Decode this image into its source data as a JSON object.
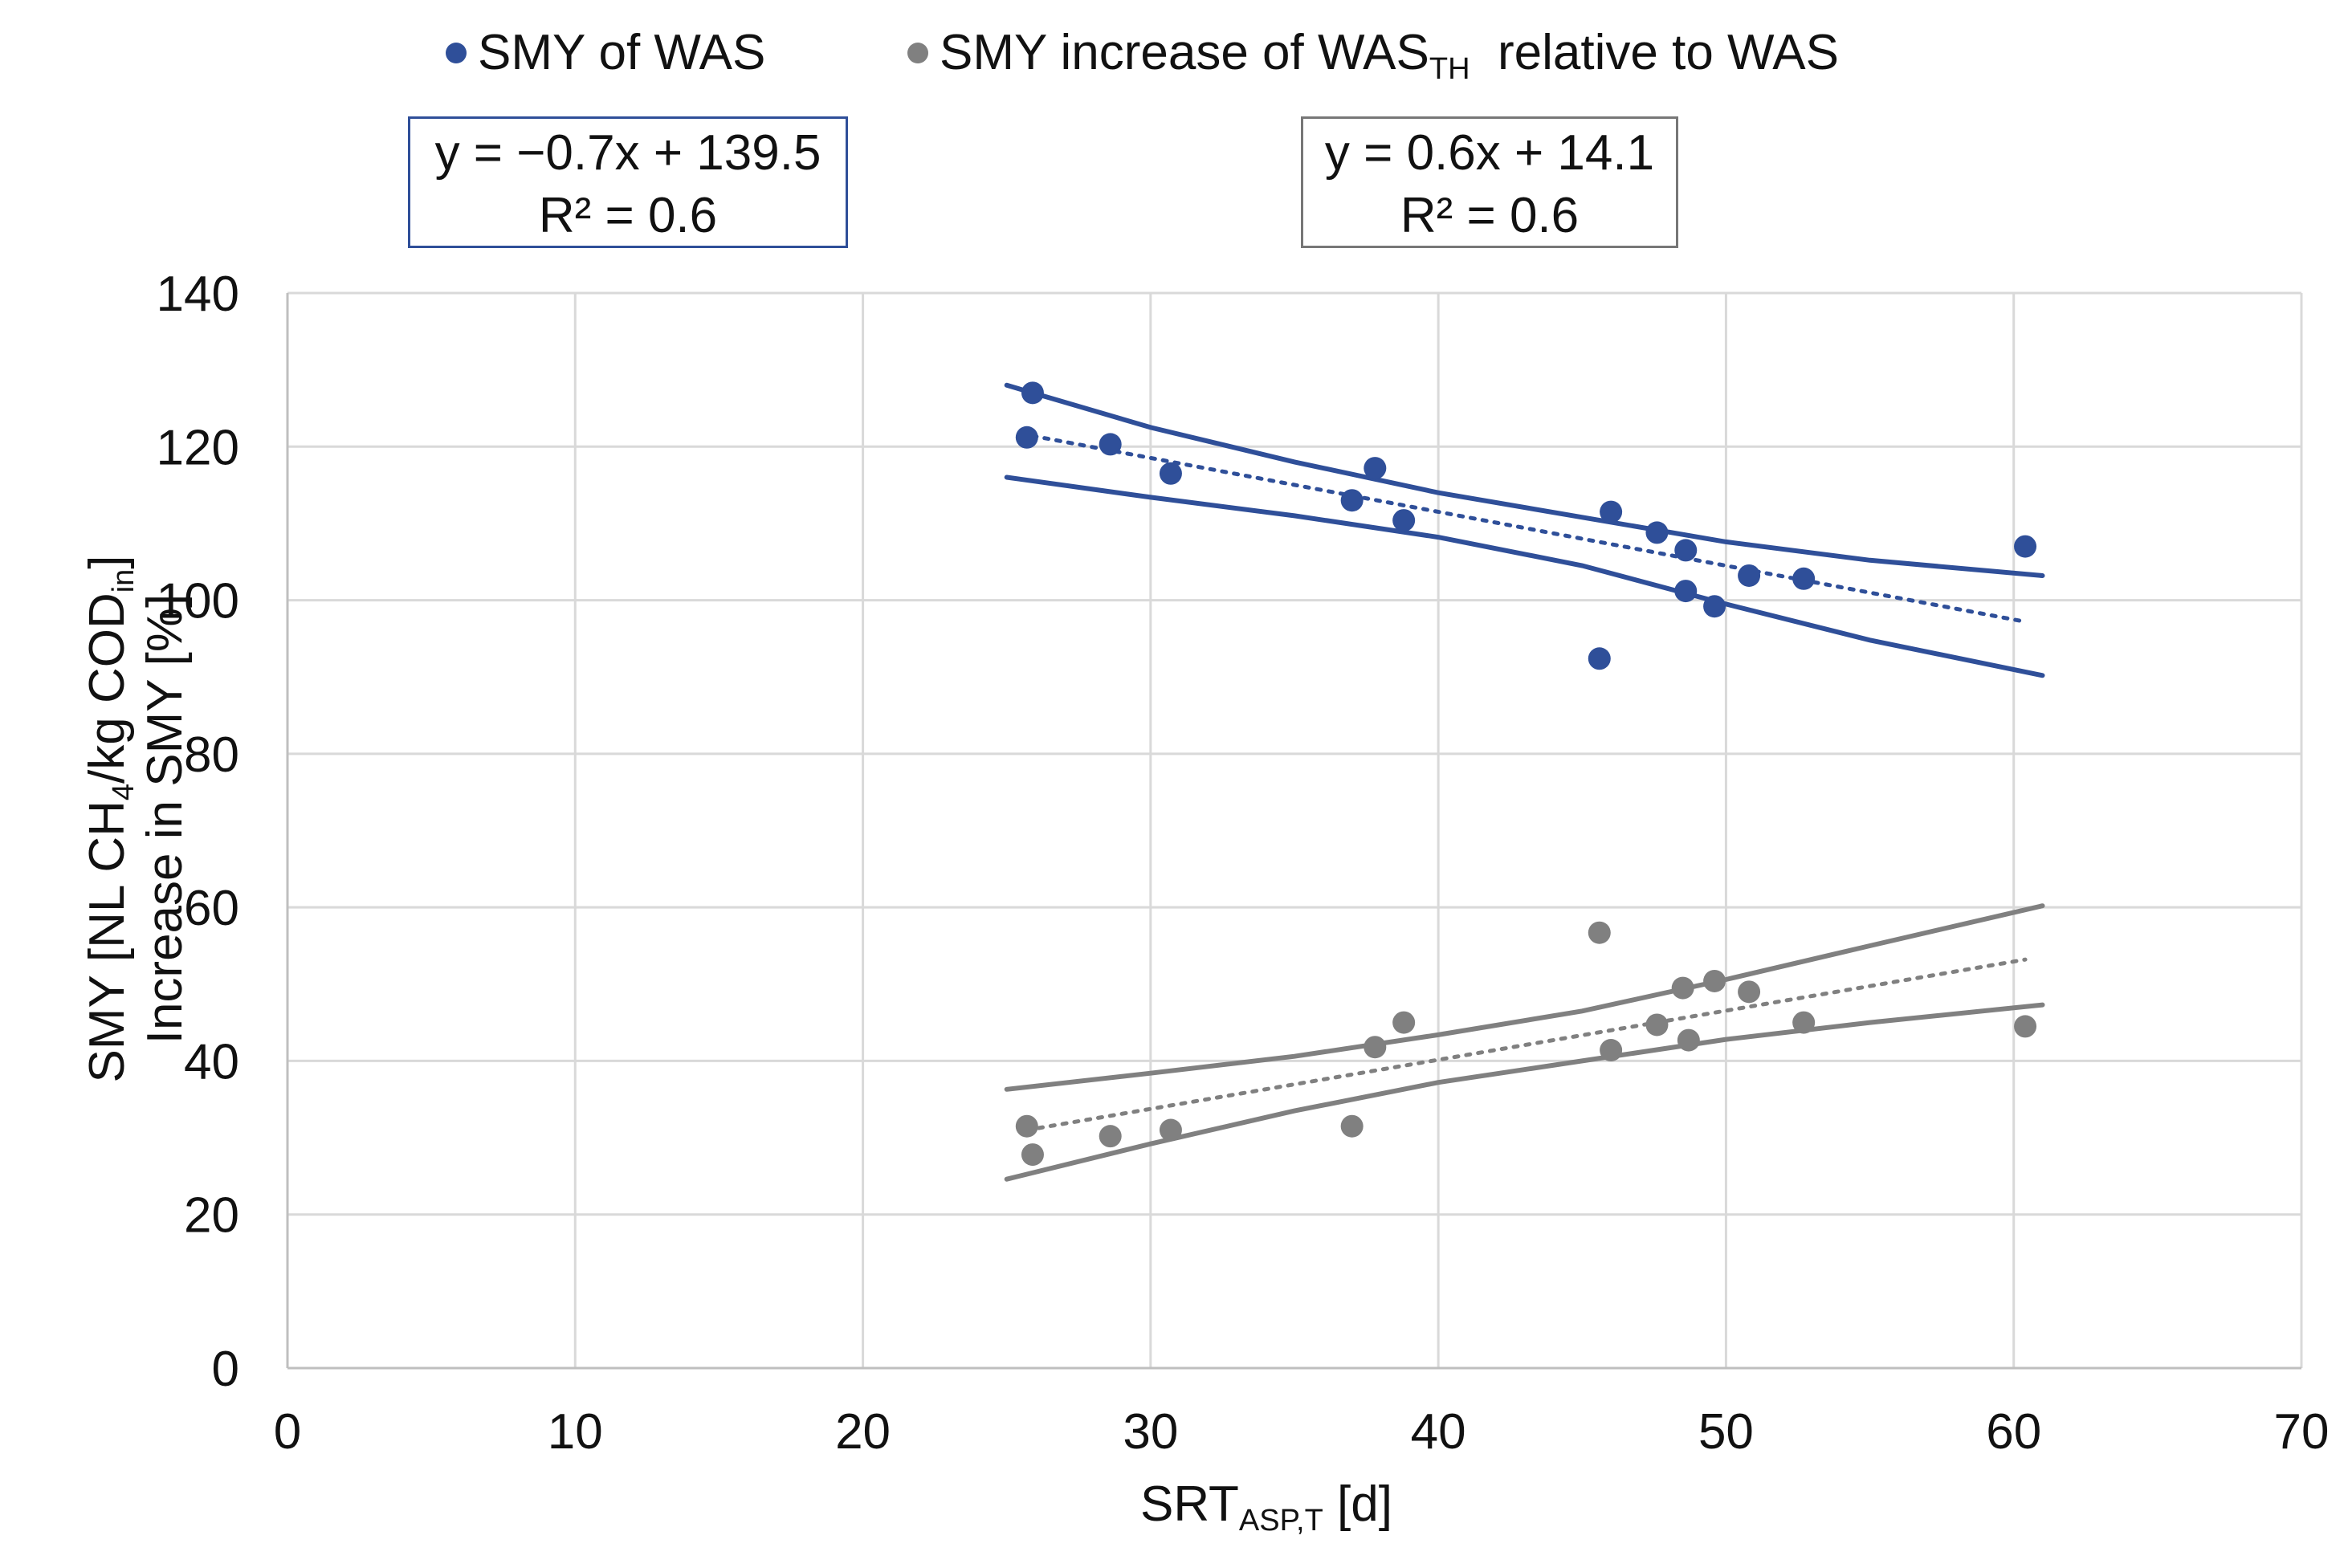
{
  "chart_data": {
    "type": "scatter",
    "x_axis": {
      "label": "SRT",
      "label_sub": "ASP,T",
      "label_suffix": " [d]",
      "range": [
        0,
        70
      ],
      "ticks": [
        0,
        10,
        20,
        30,
        40,
        50,
        60,
        70
      ]
    },
    "y_axis": {
      "label_line1_prefix": "SMY [NL CH",
      "label_line1_sub1": "4",
      "label_line1_mid": "/kg COD",
      "label_line1_sub2": "in",
      "label_line1_suffix": "]",
      "label_line2": "Increase in SMY [%]",
      "range": [
        0,
        140
      ],
      "ticks": [
        0,
        20,
        40,
        60,
        80,
        100,
        120,
        140
      ]
    },
    "grid": true,
    "legend": {
      "position": "top",
      "items": [
        {
          "label": "SMY of WAS",
          "color": "#2f4f99"
        },
        {
          "label_prefix": "SMY increase of WAS",
          "label_sub": "TH",
          "label_suffix": "  relative to WAS",
          "color": "#808080"
        }
      ]
    },
    "series": [
      {
        "name": "SMY of WAS",
        "color": "#2f4f99",
        "points": [
          [
            25.9,
            127
          ],
          [
            25.7,
            121.2
          ],
          [
            28.6,
            120.3
          ],
          [
            30.7,
            116.5
          ],
          [
            37.8,
            117.2
          ],
          [
            37,
            113
          ],
          [
            38.8,
            110.4
          ],
          [
            46,
            111.5
          ],
          [
            47.6,
            108.8
          ],
          [
            48.6,
            106.5
          ],
          [
            48.6,
            101.2
          ],
          [
            49.6,
            99.2
          ],
          [
            50.8,
            103.2
          ],
          [
            52.7,
            102.8
          ],
          [
            60.4,
            107
          ],
          [
            45.6,
            92.4
          ]
        ],
        "trendline": {
          "equation": "y = −0.7x + 139.5",
          "r2": "R² = 0.6",
          "x": [
            25.9,
            60.4
          ],
          "y": [
            121.4,
            97.2
          ]
        },
        "confidence_band": {
          "upper": [
            [
              25,
              128
            ],
            [
              30,
              122.5
            ],
            [
              35,
              118
            ],
            [
              40,
              114
            ],
            [
              45,
              110.8
            ],
            [
              50,
              107.6
            ],
            [
              55,
              105.2
            ],
            [
              61,
              103.2
            ]
          ],
          "lower": [
            [
              25,
              116
            ],
            [
              30,
              113.4
            ],
            [
              35,
              111
            ],
            [
              40,
              108.2
            ],
            [
              45,
              104.5
            ],
            [
              50,
              99.5
            ],
            [
              55,
              94.8
            ],
            [
              61,
              90.2
            ]
          ]
        }
      },
      {
        "name": "SMY increase of WAS_TH relative to WAS",
        "color": "#808080",
        "points": [
          [
            25.7,
            31.5
          ],
          [
            25.9,
            27.8
          ],
          [
            28.6,
            30.2
          ],
          [
            30.7,
            31
          ],
          [
            37,
            31.5
          ],
          [
            37.8,
            41.8
          ],
          [
            38.8,
            45
          ],
          [
            45.6,
            56.7
          ],
          [
            46,
            41.4
          ],
          [
            47.6,
            44.7
          ],
          [
            48.5,
            49.5
          ],
          [
            48.7,
            42.7
          ],
          [
            49.6,
            50.4
          ],
          [
            50.8,
            49
          ],
          [
            52.7,
            45
          ],
          [
            60.4,
            44.5
          ]
        ],
        "trendline": {
          "equation": "y = 0.6x + 14.1",
          "r2": "R² = 0.6",
          "x": [
            25.7,
            60.4
          ],
          "y": [
            31,
            53.2
          ]
        },
        "confidence_band": {
          "upper": [
            [
              25,
              36.3
            ],
            [
              30,
              38.4
            ],
            [
              35,
              40.6
            ],
            [
              40,
              43.4
            ],
            [
              45,
              46.5
            ],
            [
              50,
              50.6
            ],
            [
              55,
              55
            ],
            [
              61,
              60.2
            ]
          ],
          "lower": [
            [
              25,
              24.6
            ],
            [
              30,
              29.2
            ],
            [
              35,
              33.5
            ],
            [
              40,
              37.2
            ],
            [
              45,
              40
            ],
            [
              50,
              42.8
            ],
            [
              55,
              45
            ],
            [
              61,
              47.3
            ]
          ]
        }
      }
    ]
  }
}
